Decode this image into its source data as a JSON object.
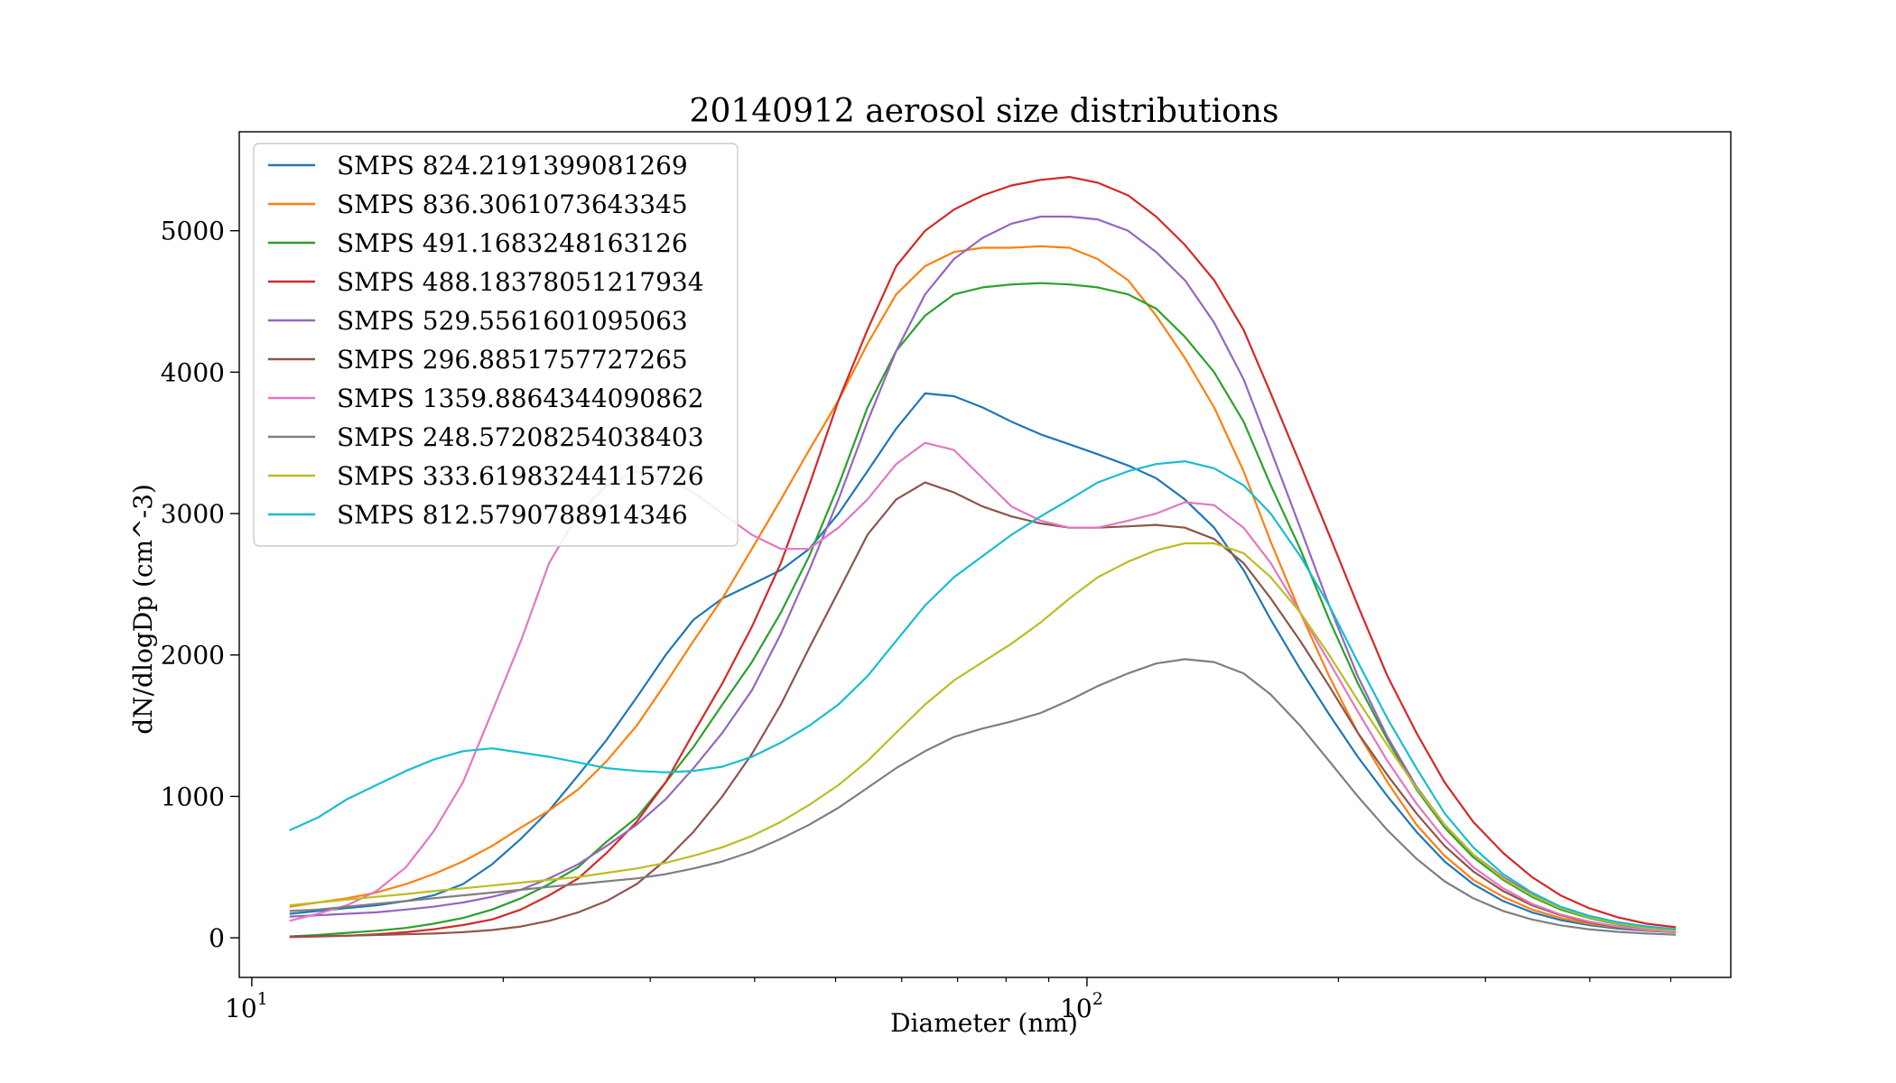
{
  "chart_data": {
    "type": "line",
    "title": "20140912 aerosol size distributions",
    "xlabel": "Diameter (nm)",
    "ylabel": "dN/dlogDp (cm^-3)",
    "x_scale": "log",
    "xlim": [
      9.66,
      590
    ],
    "ylim": [
      -280,
      5700
    ],
    "x_ticks": [
      {
        "value": 10,
        "base": "10",
        "exp": "1"
      },
      {
        "value": 100,
        "base": "10",
        "exp": "2"
      }
    ],
    "y_ticks": [
      0,
      1000,
      2000,
      3000,
      4000,
      5000
    ],
    "y_tick_labels": [
      "0",
      "1000",
      "2000",
      "3000",
      "4000",
      "5000"
    ],
    "grid": false,
    "legend_position": "top-left",
    "x": [
      11.1,
      12.0,
      13.0,
      14.1,
      15.3,
      16.5,
      17.9,
      19.4,
      21.0,
      22.7,
      24.6,
      26.6,
      28.9,
      31.3,
      33.8,
      36.6,
      39.7,
      43.0,
      46.5,
      50.4,
      54.6,
      59.1,
      64.0,
      69.3,
      75.0,
      81.2,
      88.0,
      95.3,
      103.0,
      112.0,
      121.0,
      131.0,
      142.0,
      154.0,
      166.0,
      180.0,
      195.0,
      211.0,
      229.0,
      248.0,
      268.0,
      290.0,
      315.0,
      341.0,
      369.0,
      399.0,
      432.0,
      468.0,
      507.0
    ],
    "series": [
      {
        "name": "SMPS 824.2191399081269",
        "color": "#1f77b4",
        "values": [
          170,
          190,
          210,
          230,
          260,
          300,
          380,
          520,
          700,
          900,
          1150,
          1400,
          1700,
          2000,
          2250,
          2400,
          2500,
          2600,
          2750,
          3000,
          3300,
          3600,
          3850,
          3830,
          3750,
          3650,
          3560,
          3490,
          3420,
          3340,
          3250,
          3100,
          2900,
          2600,
          2250,
          1900,
          1580,
          1280,
          1000,
          750,
          540,
          380,
          260,
          180,
          125,
          90,
          65,
          50,
          40
        ]
      },
      {
        "name": "SMPS 836.3061073643345",
        "color": "#ff7f0e",
        "values": [
          220,
          250,
          280,
          320,
          380,
          450,
          540,
          650,
          780,
          900,
          1050,
          1250,
          1500,
          1800,
          2100,
          2400,
          2750,
          3100,
          3450,
          3800,
          4200,
          4550,
          4750,
          4850,
          4880,
          4880,
          4890,
          4880,
          4800,
          4650,
          4400,
          4100,
          3750,
          3300,
          2800,
          2300,
          1850,
          1450,
          1100,
          800,
          580,
          410,
          290,
          200,
          140,
          100,
          72,
          55,
          45
        ]
      },
      {
        "name": "SMPS 491.1683248163126",
        "color": "#2ca02c",
        "values": [
          10,
          20,
          35,
          50,
          70,
          100,
          140,
          200,
          280,
          380,
          500,
          680,
          850,
          1100,
          1350,
          1650,
          1950,
          2300,
          2700,
          3200,
          3750,
          4150,
          4400,
          4550,
          4600,
          4620,
          4630,
          4620,
          4600,
          4550,
          4450,
          4250,
          4000,
          3650,
          3200,
          2750,
          2250,
          1800,
          1400,
          1050,
          780,
          570,
          410,
          290,
          200,
          140,
          95,
          65,
          45
        ]
      },
      {
        "name": "SMPS 488.18378051217934",
        "color": "#d62728",
        "values": [
          5,
          10,
          15,
          25,
          40,
          60,
          90,
          130,
          200,
          300,
          420,
          600,
          820,
          1100,
          1450,
          1800,
          2200,
          2650,
          3200,
          3800,
          4300,
          4750,
          5000,
          5150,
          5250,
          5320,
          5360,
          5380,
          5340,
          5250,
          5100,
          4900,
          4650,
          4300,
          3850,
          3350,
          2850,
          2350,
          1850,
          1450,
          1100,
          820,
          600,
          430,
          300,
          210,
          145,
          100,
          75
        ]
      },
      {
        "name": "SMPS 529.5561601095063",
        "color": "#9467bd",
        "values": [
          150,
          160,
          170,
          180,
          200,
          220,
          250,
          290,
          340,
          420,
          520,
          650,
          800,
          980,
          1200,
          1450,
          1750,
          2150,
          2600,
          3100,
          3650,
          4150,
          4550,
          4800,
          4950,
          5050,
          5100,
          5100,
          5080,
          5000,
          4850,
          4650,
          4350,
          3950,
          3450,
          2900,
          2350,
          1850,
          1420,
          1070,
          800,
          590,
          430,
          310,
          220,
          155,
          110,
          80,
          60
        ]
      },
      {
        "name": "SMPS 296.8851757727265",
        "color": "#8c564b",
        "values": [
          10,
          12,
          15,
          20,
          25,
          30,
          40,
          55,
          80,
          120,
          180,
          260,
          380,
          550,
          750,
          1000,
          1300,
          1650,
          2050,
          2450,
          2850,
          3100,
          3220,
          3150,
          3050,
          2980,
          2930,
          2900,
          2900,
          2910,
          2920,
          2900,
          2820,
          2650,
          2400,
          2100,
          1780,
          1450,
          1150,
          880,
          650,
          470,
          330,
          230,
          160,
          110,
          75,
          52,
          38
        ]
      },
      {
        "name": "SMPS 1359.8864344090862",
        "color": "#e377c2",
        "values": [
          120,
          170,
          230,
          330,
          500,
          750,
          1100,
          1600,
          2100,
          2650,
          3000,
          3200,
          3300,
          3250,
          3150,
          3000,
          2850,
          2750,
          2750,
          2900,
          3100,
          3350,
          3500,
          3450,
          3250,
          3050,
          2950,
          2900,
          2900,
          2950,
          3000,
          3080,
          3060,
          2900,
          2650,
          2300,
          1950,
          1600,
          1250,
          950,
          700,
          500,
          350,
          240,
          165,
          115,
          80,
          55,
          40
        ]
      },
      {
        "name": "SMPS 248.57208254038403",
        "color": "#7f7f7f",
        "values": [
          190,
          200,
          220,
          240,
          260,
          280,
          300,
          320,
          340,
          360,
          380,
          400,
          420,
          450,
          490,
          540,
          610,
          700,
          800,
          920,
          1060,
          1200,
          1320,
          1420,
          1480,
          1530,
          1590,
          1680,
          1780,
          1870,
          1940,
          1970,
          1950,
          1870,
          1720,
          1500,
          1250,
          1000,
          760,
          560,
          400,
          280,
          190,
          130,
          88,
          60,
          42,
          30,
          22
        ]
      },
      {
        "name": "SMPS 333.61983244115726",
        "color": "#bcbd22",
        "values": [
          230,
          250,
          270,
          290,
          310,
          330,
          350,
          370,
          390,
          410,
          430,
          460,
          490,
          530,
          580,
          640,
          720,
          820,
          940,
          1080,
          1250,
          1450,
          1650,
          1820,
          1950,
          2080,
          2230,
          2400,
          2550,
          2660,
          2740,
          2790,
          2790,
          2720,
          2550,
          2300,
          2000,
          1680,
          1360,
          1060,
          800,
          590,
          420,
          300,
          210,
          145,
          100,
          70,
          50
        ]
      },
      {
        "name": "SMPS 812.5790788914346",
        "color": "#17becf",
        "values": [
          760,
          850,
          980,
          1080,
          1180,
          1260,
          1320,
          1340,
          1310,
          1280,
          1240,
          1200,
          1180,
          1170,
          1180,
          1210,
          1280,
          1380,
          1500,
          1650,
          1850,
          2100,
          2350,
          2550,
          2700,
          2850,
          2980,
          3100,
          3220,
          3300,
          3350,
          3370,
          3320,
          3200,
          3000,
          2700,
          2350,
          1950,
          1550,
          1200,
          880,
          640,
          450,
          320,
          220,
          155,
          110,
          80,
          60
        ]
      }
    ]
  }
}
